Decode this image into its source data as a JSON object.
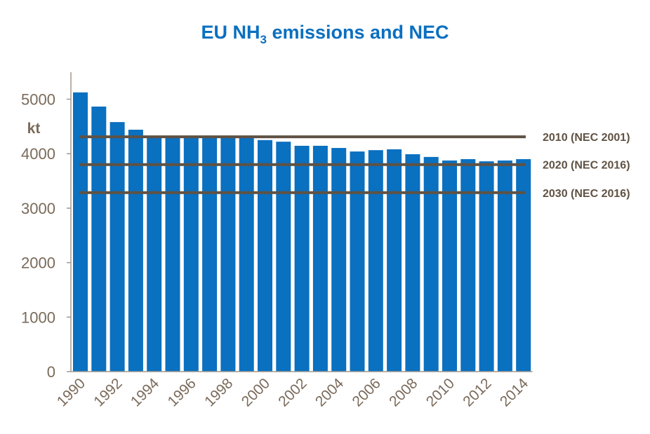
{
  "chart_data": {
    "type": "bar",
    "title": {
      "main": "EU NH",
      "sub": "3",
      "rest": " emissions and NEC"
    },
    "ylabel": "kt",
    "ylim": [
      0,
      5000
    ],
    "yticks": [
      0,
      1000,
      2000,
      3000,
      4000,
      5000
    ],
    "categories": [
      "1990",
      "1991",
      "1992",
      "1993",
      "1994",
      "1995",
      "1996",
      "1997",
      "1998",
      "1999",
      "2000",
      "2001",
      "2002",
      "2003",
      "2004",
      "2005",
      "2006",
      "2007",
      "2008",
      "2009",
      "2010",
      "2011",
      "2012",
      "2013",
      "2014"
    ],
    "xtick_labels": [
      "1990",
      "1992",
      "1994",
      "1996",
      "1998",
      "2000",
      "2002",
      "2004",
      "2006",
      "2008",
      "2010",
      "2012",
      "2014"
    ],
    "values": [
      5125,
      4865,
      4580,
      4440,
      4330,
      4330,
      4330,
      4330,
      4330,
      4330,
      4250,
      4220,
      4145,
      4145,
      4105,
      4040,
      4065,
      4080,
      3990,
      3940,
      3875,
      3900,
      3860,
      3875,
      3900
    ],
    "reference_lines": [
      {
        "label": "2010 (NEC 2001)",
        "value": 4310
      },
      {
        "label": "2020 (NEC 2016)",
        "value": 3800
      },
      {
        "label": "2030 (NEC 2016)",
        "value": 3285
      }
    ],
    "grid": false,
    "colors": {
      "bar": "#0a70c0",
      "line": "#5f5244",
      "title": "#0a70c0",
      "text": "#7a6a5a",
      "axis": "#a09890"
    }
  }
}
